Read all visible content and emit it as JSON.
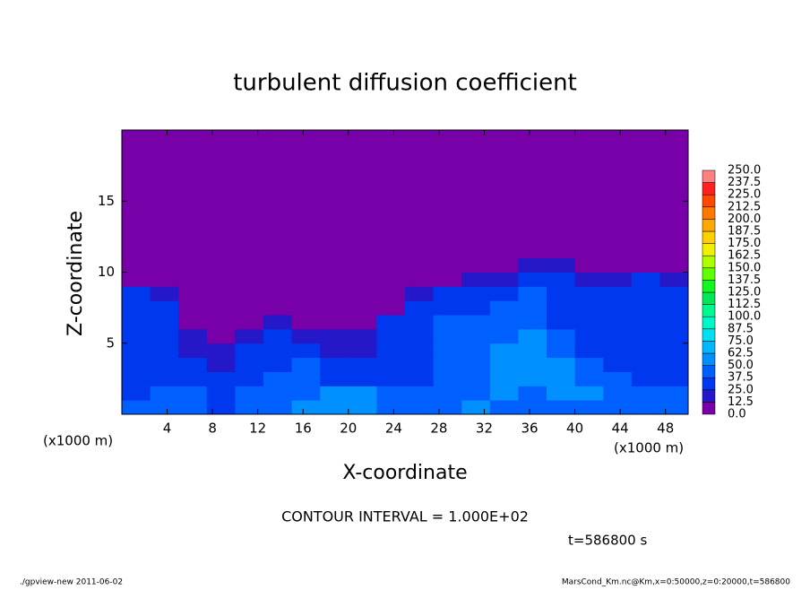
{
  "chart_data": {
    "type": "contour",
    "title": "turbulent diffusion coefficient",
    "xlabel": "X-coordinate",
    "ylabel": "Z-coordinate",
    "x_unit": "(x1000 m)",
    "xlim": [
      0,
      50
    ],
    "xticks": [
      4,
      8,
      12,
      16,
      20,
      24,
      28,
      32,
      36,
      40,
      44,
      48
    ],
    "ylim": [
      0,
      20
    ],
    "yticks": [
      5,
      10,
      15
    ],
    "x_edges": [
      0,
      2.5,
      5,
      7.5,
      10,
      12.5,
      15,
      17.5,
      20,
      22.5,
      25,
      27.5,
      30,
      32.5,
      35,
      37.5,
      40,
      42.5,
      45,
      47.5,
      50
    ],
    "y_edges": [
      0,
      1,
      2,
      3,
      4,
      5,
      6,
      7,
      8,
      9,
      10,
      11,
      20
    ],
    "z": [
      [
        40,
        45,
        40,
        35,
        40,
        45,
        50,
        60,
        55,
        45,
        40,
        45,
        50,
        45,
        40,
        45,
        40,
        45,
        40,
        45
      ],
      [
        35,
        40,
        40,
        35,
        45,
        40,
        45,
        50,
        55,
        45,
        40,
        40,
        45,
        50,
        45,
        50,
        55,
        45,
        40,
        40
      ],
      [
        30,
        35,
        30,
        25,
        35,
        40,
        45,
        35,
        30,
        30,
        35,
        40,
        45,
        50,
        55,
        60,
        45,
        40,
        35,
        35
      ],
      [
        30,
        35,
        25,
        20,
        30,
        35,
        40,
        30,
        25,
        30,
        35,
        40,
        45,
        55,
        60,
        50,
        40,
        35,
        30,
        30
      ],
      [
        30,
        30,
        20,
        15,
        25,
        30,
        30,
        20,
        20,
        30,
        35,
        40,
        45,
        50,
        55,
        45,
        35,
        30,
        30,
        30
      ],
      [
        30,
        25,
        15,
        10,
        15,
        25,
        20,
        15,
        15,
        30,
        35,
        40,
        40,
        45,
        50,
        40,
        30,
        30,
        30,
        30
      ],
      [
        30,
        25,
        10,
        5,
        10,
        15,
        10,
        10,
        5,
        25,
        35,
        40,
        40,
        40,
        45,
        35,
        30,
        30,
        30,
        30
      ],
      [
        30,
        25,
        5,
        0,
        5,
        10,
        5,
        5,
        0,
        10,
        30,
        35,
        35,
        40,
        45,
        35,
        30,
        30,
        30,
        30
      ],
      [
        25,
        20,
        0,
        0,
        0,
        0,
        0,
        0,
        0,
        0,
        15,
        30,
        30,
        35,
        40,
        35,
        30,
        30,
        30,
        25
      ],
      [
        10,
        5,
        0,
        0,
        0,
        0,
        0,
        0,
        0,
        0,
        0,
        10,
        15,
        20,
        30,
        30,
        20,
        20,
        25,
        15
      ],
      [
        0,
        0,
        0,
        0,
        0,
        0,
        0,
        0,
        0,
        0,
        0,
        0,
        0,
        10,
        15,
        15,
        5,
        0,
        0,
        0
      ],
      [
        0,
        0,
        0,
        0,
        0,
        0,
        0,
        0,
        0,
        0,
        0,
        0,
        0,
        0,
        0,
        0,
        0,
        0,
        0,
        0
      ]
    ],
    "levels": [
      {
        "value": 0,
        "label": "0.0"
      },
      {
        "value": 12.5,
        "label": "12.5"
      },
      {
        "value": 25,
        "label": "25.0"
      },
      {
        "value": 37.5,
        "label": "37.5"
      },
      {
        "value": 50,
        "label": "50.0"
      },
      {
        "value": 62.5,
        "label": "62.5"
      },
      {
        "value": 75,
        "label": "75.0"
      },
      {
        "value": 87.5,
        "label": "87.5"
      },
      {
        "value": 100,
        "label": "100.0"
      },
      {
        "value": 112.5,
        "label": "112.5"
      },
      {
        "value": 125,
        "label": "125.0"
      },
      {
        "value": 137.5,
        "label": "137.5"
      },
      {
        "value": 150,
        "label": "150.0"
      },
      {
        "value": 162.5,
        "label": "162.5"
      },
      {
        "value": 175,
        "label": "175.0"
      },
      {
        "value": 187.5,
        "label": "187.5"
      },
      {
        "value": 200,
        "label": "200.0"
      },
      {
        "value": 212.5,
        "label": "212.5"
      },
      {
        "value": 225,
        "label": "225.0"
      },
      {
        "value": 237.5,
        "label": "237.5"
      },
      {
        "value": 250,
        "label": "250.0"
      }
    ],
    "colors": [
      "#7800a8",
      "#2418c8",
      "#0038f0",
      "#0060ff",
      "#0090ff",
      "#00b8ff",
      "#00e0f0",
      "#00f8c8",
      "#00f890",
      "#00e858",
      "#10f820",
      "#60ff00",
      "#b0ff00",
      "#f0f000",
      "#ffd000",
      "#ffa800",
      "#ff7800",
      "#ff4800",
      "#ff2020",
      "#ff8080"
    ],
    "annotation": "CONTOUR INTERVAL = 1.000E+02",
    "time": "t=586800 s",
    "footer_left": "./gpview-new   2011-06-02",
    "footer_right": "MarsCond_Km.nc@Km,x=0:50000,z=0:20000,t=586800"
  }
}
